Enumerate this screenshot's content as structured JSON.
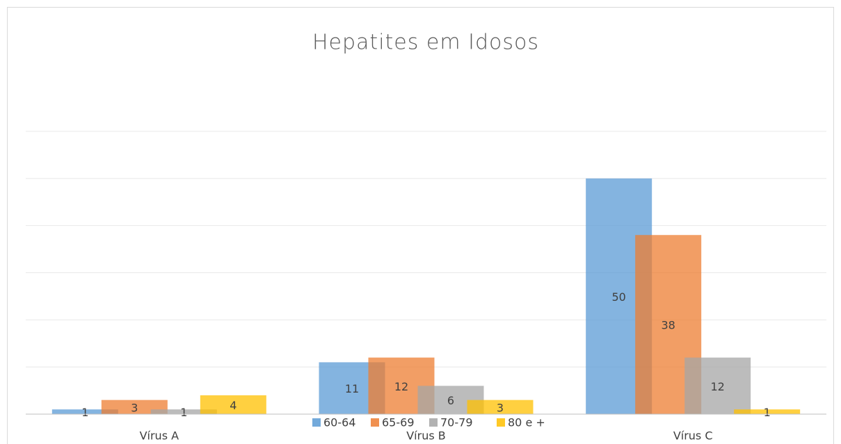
{
  "chart_data": {
    "type": "bar",
    "title": "Hepatites em Idosos",
    "categories": [
      "Vírus A",
      "Vírus B",
      "Vírus C"
    ],
    "series": [
      {
        "name": "60-64",
        "color": "#5b9bd5",
        "values": [
          1,
          11,
          50
        ]
      },
      {
        "name": "65-69",
        "color": "#ed7d31",
        "values": [
          3,
          12,
          38
        ]
      },
      {
        "name": "70-79",
        "color": "#a5a5a5",
        "values": [
          1,
          6,
          12
        ]
      },
      {
        "name": "80 e +",
        "color": "#ffc000",
        "values": [
          4,
          3,
          1
        ]
      }
    ],
    "ylim": [
      0,
      60
    ],
    "yticks": [
      0,
      10,
      20,
      30,
      40,
      50,
      60
    ],
    "grid": true,
    "legend": "bottom"
  }
}
